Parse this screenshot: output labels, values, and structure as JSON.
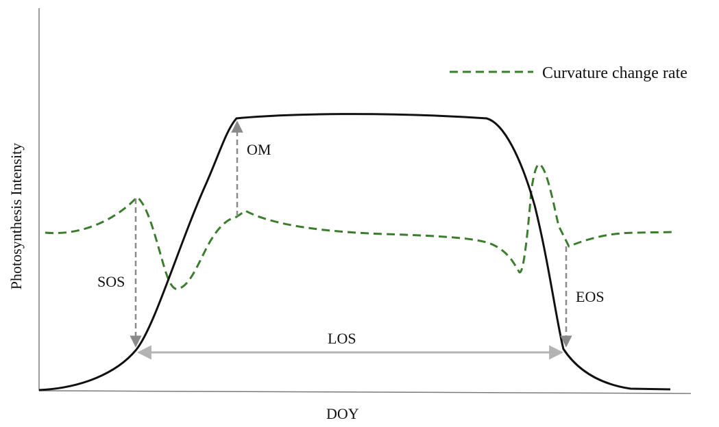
{
  "axes": {
    "x_label": "DOY",
    "y_label": "Photosynthesis Intensity"
  },
  "legend": {
    "label": "Curvature change rate",
    "position": "top-right"
  },
  "annotations": {
    "om": "OM",
    "sos": "SOS",
    "eos": "EOS",
    "los": "LOS"
  },
  "colors": {
    "main_curve": "#111111",
    "curvature_curve": "#3a7d2c",
    "annotation_arrows": "#8a8a8a",
    "los_arrow": "#b3b3b3"
  }
}
